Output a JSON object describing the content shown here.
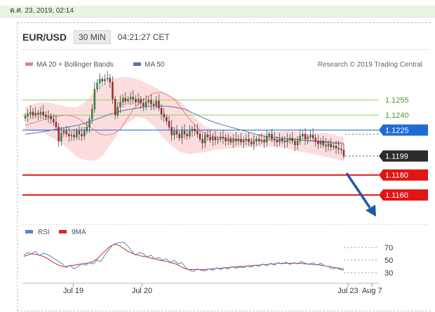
{
  "header": {
    "date": "ค.ศ. 23, 2019, 02:14",
    "symbol": "EUR/USD",
    "timeframe": "30 MIN",
    "time": "04:21:27 CET"
  },
  "legend": {
    "bb": "MA 20 + Bollinger Bands",
    "ma50": "MA 50",
    "credit": "Research © 2019 Trading Central",
    "rsi": "RSI",
    "rsi_ma": "9MA"
  },
  "colors": {
    "candle_up": "#2e9c35",
    "candle_down": "#c71a1a",
    "bb_fill": "#fbd2d2",
    "ma20": "#e48484",
    "ma50": "#5477a6",
    "resistance": "#8fcf63",
    "pivot": "#1f6bd6",
    "support": "#e21515",
    "arrow": "#1c5aa6",
    "rsi": "#5a86c8",
    "rsi_ma": "#d62828"
  },
  "chart_data": [
    {
      "type": "candlestick",
      "yrange": [
        1.1132,
        1.1285
      ],
      "x_ticks": [
        {
          "label": "Jul 19",
          "at": 19.4
        },
        {
          "label": "Jul 20",
          "at": 20.4
        },
        {
          "label": "Jul 23",
          "at": 23.4
        },
        {
          "label": "Aug 7",
          "at": 23.75
        }
      ],
      "levels": [
        {
          "label": "1.1255",
          "value": 1.1255,
          "kind": "resistance"
        },
        {
          "label": "1.1240",
          "value": 1.124,
          "kind": "resistance"
        },
        {
          "label": "1.1225",
          "value": 1.1225,
          "kind": "pivot"
        },
        {
          "label": "1.1199",
          "value": 1.1199,
          "kind": "last"
        },
        {
          "label": "1.1180",
          "value": 1.118,
          "kind": "support"
        },
        {
          "label": "1.1160",
          "value": 1.116,
          "kind": "support"
        }
      ],
      "close": [
        1.1239,
        1.1241,
        1.1243,
        1.124,
        1.1242,
        1.1241,
        1.1243,
        1.124,
        1.1238,
        1.1239,
        1.1236,
        1.1233,
        1.1228,
        1.1214,
        1.1222,
        1.1224,
        1.1221,
        1.1219,
        1.122,
        1.1218,
        1.1224,
        1.1221,
        1.1219,
        1.1224,
        1.1228,
        1.1236,
        1.1246,
        1.1266,
        1.1272,
        1.1276,
        1.1274,
        1.1276,
        1.1277,
        1.1273,
        1.1256,
        1.124,
        1.1248,
        1.1253,
        1.1257,
        1.1254,
        1.1256,
        1.1258,
        1.1256,
        1.1253,
        1.1256,
        1.1252,
        1.1249,
        1.1253,
        1.1255,
        1.1251,
        1.125,
        1.1254,
        1.1247,
        1.1241,
        1.1238,
        1.1234,
        1.1228,
        1.122,
        1.1224,
        1.1221,
        1.1217,
        1.1224,
        1.1221,
        1.1219,
        1.1224,
        1.1226,
        1.1224,
        1.1221,
        1.1216,
        1.1212,
        1.122,
        1.1218,
        1.1215,
        1.1218,
        1.1215,
        1.1216,
        1.1218,
        1.1217,
        1.1214,
        1.1216,
        1.1213,
        1.1216,
        1.1214,
        1.1216,
        1.1213,
        1.1215,
        1.1216,
        1.1213,
        1.1211,
        1.1214,
        1.1216,
        1.1214,
        1.1215,
        1.1213,
        1.1219,
        1.1221,
        1.1216,
        1.1215,
        1.1213,
        1.1216,
        1.1214,
        1.1213,
        1.1215,
        1.1217,
        1.1214,
        1.121,
        1.1214,
        1.1219,
        1.1221,
        1.1216,
        1.1218,
        1.122,
        1.1217,
        1.1214,
        1.1211,
        1.1214,
        1.121,
        1.1209,
        1.1211,
        1.1208,
        1.1209,
        1.1207,
        1.1206,
        1.1205,
        1.1199
      ],
      "ma20": [
        1.123,
        1.1232,
        1.1234,
        1.1236,
        1.1238,
        1.1239,
        1.124,
        1.1239,
        1.1236,
        1.123,
        1.1226,
        1.1221,
        1.122,
        1.1221,
        1.1226,
        1.1236,
        1.1246,
        1.1253,
        1.1258,
        1.1262,
        1.1263,
        1.126,
        1.1256,
        1.1247,
        1.1238,
        1.123,
        1.1224,
        1.122,
        1.1218,
        1.1217,
        1.1217,
        1.1216,
        1.1215,
        1.1215,
        1.1215,
        1.1214,
        1.1215,
        1.1215,
        1.1215,
        1.1215,
        1.1216,
        1.1215,
        1.1214,
        1.1214,
        1.1214,
        1.1213,
        1.1213,
        1.1212
      ],
      "bb_upper": [
        1.1248,
        1.1251,
        1.1253,
        1.1252,
        1.125,
        1.1248,
        1.1248,
        1.1253,
        1.1263,
        1.127,
        1.1276,
        1.1278,
        1.1278,
        1.1276,
        1.1272,
        1.1268,
        1.1263,
        1.1259,
        1.1254,
        1.1245,
        1.1235,
        1.1228,
        1.1226,
        1.1225,
        1.1224,
        1.1223,
        1.1222,
        1.1221,
        1.1222,
        1.1223,
        1.1224,
        1.1224,
        1.1222,
        1.1221,
        1.1222,
        1.1222,
        1.122,
        1.1218
      ],
      "bb_lower": [
        1.1225,
        1.1224,
        1.1223,
        1.1218,
        1.1213,
        1.1206,
        1.1198,
        1.1195,
        1.1194,
        1.1199,
        1.1212,
        1.1224,
        1.1233,
        1.1238,
        1.1236,
        1.1228,
        1.1218,
        1.1209,
        1.1203,
        1.1201,
        1.1202,
        1.1203,
        1.1205,
        1.1206,
        1.1207,
        1.1207,
        1.1208,
        1.1208,
        1.1209,
        1.1208,
        1.1207,
        1.1205,
        1.1203,
        1.1202,
        1.12,
        1.1198,
        1.1196,
        1.1194
      ],
      "ma50": [
        1.1221,
        1.1222,
        1.1224,
        1.1226,
        1.1228,
        1.123,
        1.1233,
        1.1237,
        1.1241,
        1.1244,
        1.1246,
        1.1248,
        1.1249,
        1.1249,
        1.1248,
        1.1246,
        1.1241,
        1.1236,
        1.1232,
        1.1229,
        1.1226,
        1.1223,
        1.122,
        1.1218,
        1.1217,
        1.1216,
        1.1215,
        1.1214,
        1.1213,
        1.1212,
        1.1211
      ]
    },
    {
      "type": "line",
      "name": "RSI",
      "yrange": [
        20,
        80
      ],
      "y_ticks": [
        70,
        50,
        30
      ],
      "rsi": [
        58,
        62,
        60,
        64,
        57,
        61,
        59,
        56,
        52,
        48,
        44,
        38,
        42,
        36,
        40,
        44,
        42,
        46,
        44,
        50,
        48,
        58,
        66,
        74,
        77,
        78,
        78,
        72,
        64,
        58,
        62,
        60,
        55,
        58,
        52,
        54,
        50,
        52,
        46,
        50,
        44,
        46,
        38,
        34,
        32,
        36,
        34,
        33,
        36,
        34,
        38,
        35,
        38,
        36,
        40,
        37,
        39,
        38,
        41,
        39,
        42,
        40,
        44,
        41,
        45,
        42,
        46,
        44,
        47,
        43,
        46,
        44,
        48,
        45,
        43,
        46,
        42,
        45,
        41,
        40,
        36,
        38,
        35,
        34
      ],
      "rsi_ma": [
        56,
        58,
        60,
        59,
        58,
        56,
        53,
        49,
        45,
        42,
        40,
        40,
        41,
        42,
        43,
        44,
        45,
        46,
        48,
        52,
        58,
        64,
        70,
        74,
        75,
        72,
        68,
        64,
        61,
        59,
        57,
        56,
        55,
        53,
        52,
        50,
        49,
        48,
        46,
        45,
        42,
        39,
        36,
        35,
        35,
        35,
        35,
        35,
        36,
        36,
        37,
        37,
        38,
        38,
        39,
        39,
        40,
        40,
        41,
        41,
        42,
        42,
        43,
        43,
        44,
        44,
        45,
        45,
        45,
        45,
        45,
        45,
        45,
        44,
        44,
        43,
        43,
        42,
        41,
        40,
        39,
        38,
        37,
        36
      ]
    }
  ]
}
